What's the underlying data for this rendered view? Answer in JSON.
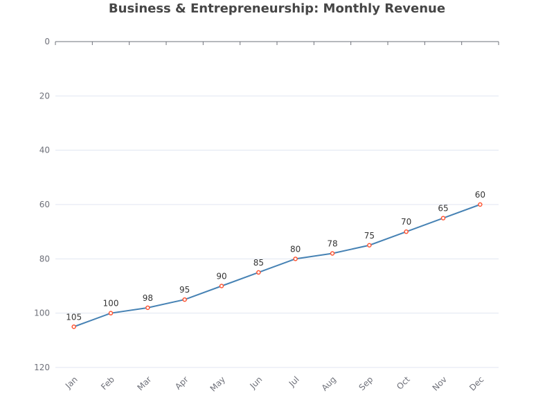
{
  "chart_data": {
    "type": "line",
    "title": "Business & Entrepreneurship: Monthly Revenue",
    "xlabel": "",
    "ylabel": "",
    "categories": [
      "Jan",
      "Feb",
      "Mar",
      "Apr",
      "May",
      "Jun",
      "Jul",
      "Aug",
      "Sep",
      "Oct",
      "Nov",
      "Dec"
    ],
    "series": [
      {
        "values": [
          105,
          100,
          98,
          95,
          90,
          85,
          80,
          78,
          75,
          70,
          65,
          60
        ]
      }
    ],
    "ylim": [
      0,
      120
    ],
    "y_inverted": true,
    "y_ticks": [
      0,
      20,
      40,
      60,
      80,
      100,
      120
    ],
    "grid": true,
    "colors": {
      "line": "#4682b4",
      "marker_stroke": "#ff5533",
      "marker_fill": "#ffffff",
      "grid": "#e0e6f1",
      "axis": "#6e7079"
    }
  }
}
